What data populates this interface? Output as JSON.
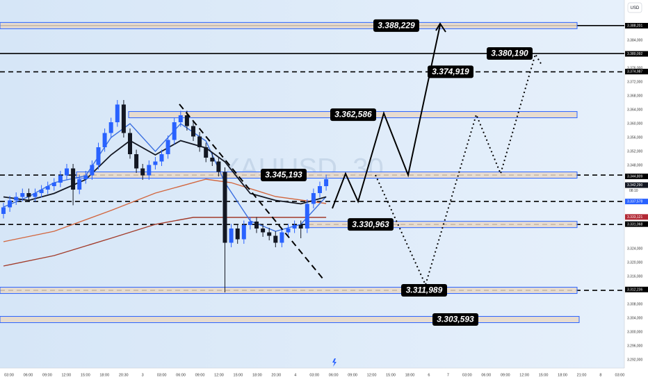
{
  "chart_data": {
    "type": "candlestick",
    "watermark": "XAUUSD, 30",
    "currency": "USD",
    "countdown": "08:10",
    "ylim": [
      3289.6,
      3395.6
    ],
    "yticks": [
      {
        "value": 3384,
        "label": "3.384,000"
      },
      {
        "value": 3376,
        "label": "3.376,000"
      },
      {
        "value": 3372,
        "label": "3.372,000"
      },
      {
        "value": 3368,
        "label": "3.368,000"
      },
      {
        "value": 3364,
        "label": "3.364,000"
      },
      {
        "value": 3360,
        "label": "3.360,000"
      },
      {
        "value": 3356,
        "label": "3.356,000"
      },
      {
        "value": 3352,
        "label": "3.352,000"
      },
      {
        "value": 3348,
        "label": "3.348,000"
      },
      {
        "value": 3324,
        "label": "3.324,000"
      },
      {
        "value": 3320,
        "label": "3.320,000"
      },
      {
        "value": 3316,
        "label": "3.316,000"
      },
      {
        "value": 3308,
        "label": "3.308,000"
      },
      {
        "value": 3304,
        "label": "3.304,000"
      },
      {
        "value": 3300,
        "label": "3.300,000"
      },
      {
        "value": 3296,
        "label": "3.296,000"
      },
      {
        "value": 3292,
        "label": "3.292,000"
      }
    ],
    "time_labels": [
      "03:00",
      "06:00",
      "09:00",
      "12:00",
      "15:00",
      "18:00",
      "20:30",
      "3",
      "03:00",
      "06:00",
      "09:00",
      "12:00",
      "15:00",
      "18:00",
      "20:30",
      "4",
      "03:00",
      "06:00",
      "09:00",
      "12:00",
      "15:00",
      "18:00",
      "6",
      "7",
      "03:00",
      "06:00",
      "09:00",
      "12:00",
      "15:00",
      "18:00",
      "21:00",
      "8",
      "03:00"
    ],
    "up_color": "#2962ff",
    "down_color": "#131722",
    "open": [
      3334.0,
      3335.9,
      3337.9,
      3338.9,
      3340.0,
      3338.9,
      3340.0,
      3341.0,
      3342.0,
      3343.0,
      3345.1,
      3347.1,
      3341.0,
      3344.0,
      3345.1,
      3348.1,
      3353.2,
      3357.3,
      3360.4,
      3365.5,
      3357.3,
      3351.2,
      3347.1,
      3345.1,
      3348.1,
      3349.1,
      3351.2,
      3355.3,
      3360.4,
      3362.4,
      3359.3,
      3356.3,
      3353.2,
      3350.2,
      3349.1,
      3346.1,
      3325.7,
      3329.8,
      3326.7,
      3330.8,
      3331.8,
      3329.8,
      3328.7,
      3327.7,
      3325.7,
      3328.7,
      3329.8,
      3330.8,
      3329.8,
      3336.9,
      3340.0,
      3342.0
    ],
    "high": [
      3337.2,
      3339.2,
      3340.2,
      3341.3,
      3341.3,
      3341.3,
      3342.3,
      3343.3,
      3344.3,
      3346.4,
      3348.4,
      3348.4,
      3345.3,
      3346.4,
      3349.4,
      3354.5,
      3358.6,
      3361.7,
      3366.8,
      3366.8,
      3358.6,
      3352.5,
      3348.4,
      3349.4,
      3350.4,
      3352.5,
      3356.6,
      3361.7,
      3363.7,
      3363.7,
      3360.6,
      3357.6,
      3354.5,
      3351.5,
      3350.4,
      3347.4,
      3331.1,
      3331.1,
      3332.1,
      3333.1,
      3333.1,
      3331.1,
      3330.0,
      3329.0,
      3330.0,
      3331.1,
      3332.1,
      3332.1,
      3338.2,
      3341.3,
      3343.3,
      3345.3
    ],
    "low": [
      3332.7,
      3334.6,
      3336.6,
      3337.6,
      3337.6,
      3337.6,
      3338.7,
      3339.7,
      3340.7,
      3341.7,
      3343.8,
      3336.5,
      3339.7,
      3342.7,
      3343.8,
      3346.8,
      3351.9,
      3356.0,
      3359.1,
      3356.0,
      3349.9,
      3345.8,
      3343.8,
      3343.8,
      3346.8,
      3347.8,
      3349.9,
      3354.0,
      3359.1,
      3358.0,
      3355.0,
      3351.9,
      3348.9,
      3347.8,
      3344.8,
      3311.4,
      3324.4,
      3325.4,
      3325.4,
      3329.5,
      3328.5,
      3327.4,
      3326.4,
      3324.4,
      3324.4,
      3327.4,
      3328.5,
      3327.0,
      3328.5,
      3335.6,
      3338.7,
      3340.7
    ],
    "close": [
      3335.9,
      3337.9,
      3338.9,
      3340.0,
      3338.9,
      3340.0,
      3341.0,
      3342.0,
      3343.0,
      3345.1,
      3347.1,
      3341.0,
      3344.0,
      3345.1,
      3348.1,
      3353.2,
      3357.3,
      3360.4,
      3365.5,
      3357.3,
      3351.2,
      3347.1,
      3345.1,
      3348.1,
      3349.1,
      3351.2,
      3355.3,
      3360.4,
      3362.4,
      3359.3,
      3356.3,
      3353.2,
      3350.2,
      3349.1,
      3346.1,
      3325.7,
      3329.8,
      3326.7,
      3330.8,
      3331.8,
      3329.8,
      3328.7,
      3327.7,
      3325.7,
      3328.7,
      3329.8,
      3330.8,
      3329.8,
      3336.9,
      3340.0,
      3342.0,
      3344.0
    ],
    "lines": [
      {
        "color": "#a23b2a",
        "x": [
          0,
          8,
          17,
          24,
          30,
          36,
          43,
          51
        ],
        "values": [
          3319,
          3322,
          3327,
          3331,
          3333,
          3333,
          3333,
          3333
        ]
      },
      {
        "color": "#d2663e",
        "x": [
          0,
          8,
          17,
          24,
          32,
          36,
          43,
          51
        ],
        "values": [
          3326,
          3329,
          3335,
          3340,
          3344,
          3343,
          3339,
          3337
        ]
      },
      {
        "color": "#3b6fe0",
        "x": [
          0,
          4,
          8,
          13,
          17,
          20,
          24,
          28,
          32,
          35,
          39,
          43,
          47,
          51
        ],
        "values": [
          3336,
          3339,
          3343,
          3345,
          3356,
          3360,
          3352,
          3360,
          3355,
          3343,
          3332,
          3329,
          3331,
          3339
        ]
      },
      {
        "color": "#131722",
        "x": [
          0,
          4,
          8,
          13,
          17,
          20,
          24,
          28,
          32,
          35,
          39,
          43,
          47,
          51
        ],
        "values": [
          3338.9,
          3337.9,
          3339.9,
          3343.9,
          3351.0,
          3355.1,
          3351.0,
          3355.1,
          3353.0,
          3349.0,
          3339.9,
          3337.9,
          3336.9,
          3338.9
        ]
      }
    ],
    "levels": [
      {
        "value": 3388.229,
        "label": "3.388,229",
        "line": "solid",
        "box": true
      },
      {
        "value": 3380.19,
        "label": "3.380,190",
        "line": "solid",
        "box": false
      },
      {
        "value": 3374.919,
        "label": "3.374,919",
        "line": "dashed",
        "box": false
      },
      {
        "value": 3362.586,
        "label": "3.362,586",
        "line": "none",
        "box": true
      },
      {
        "value": 3345.193,
        "label": "3.345,193",
        "line": "dashed",
        "box": true
      },
      {
        "value": 3330.963,
        "label": "3.330,963",
        "line": "dashed",
        "box": true
      },
      {
        "value": 3311.989,
        "label": "3.311,989",
        "line": "dashed",
        "box": true
      },
      {
        "value": 3303.593,
        "label": "3.303,593",
        "line": "none",
        "box": true
      }
    ],
    "axis_flags": [
      {
        "value": 3388.201,
        "label": "3.388,201",
        "color": "#000000"
      },
      {
        "value": 3380.092,
        "label": "3.380,092",
        "color": "#000000"
      },
      {
        "value": 3374.987,
        "label": "3.374,987",
        "color": "#000000"
      },
      {
        "value": 3344.809,
        "label": "3.344,809",
        "color": "#000000"
      },
      {
        "value": 3342.29,
        "label": "3.342,290",
        "color": "#131722"
      },
      {
        "value": 3337.578,
        "label": "3.337,578",
        "color": "#2962ff"
      },
      {
        "value": 3333.121,
        "label": "3.333,121",
        "color": "#b22833"
      },
      {
        "value": 3331.068,
        "label": "3.331,068",
        "color": "#000000"
      },
      {
        "value": 3312.236,
        "label": "3.312,236",
        "color": "#000000"
      }
    ]
  }
}
